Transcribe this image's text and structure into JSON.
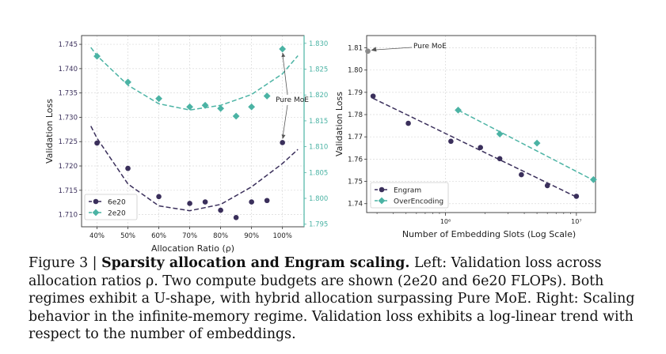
{
  "figure": {
    "caption_lead": "Figure 3 | ",
    "caption_bold": "Sparsity allocation and Engram scaling.",
    "caption_rest": " Left: Validation loss across allocation ratios ρ. Two compute budgets are shown (2e20 and 6e20 FLOPs). Both regimes exhibit a U-shape, with hybrid allocation surpassing Pure MoE. Right: Scaling behavior in the infinite-memory regime. Validation loss exhibits a log-linear trend with respect to the number of embeddings."
  },
  "colors": {
    "dark": "#3a2f5b",
    "teal": "#4bb3a4",
    "grid": "#d9d9d9",
    "gray": "#8a8a8a"
  },
  "chart_data": [
    {
      "type": "scatter",
      "xlabel": "Allocation Ratio (ρ)",
      "ylabel": "Validation Loss",
      "x_ticks": [
        "40%",
        "50%",
        "60%",
        "70%",
        "80%",
        "90%",
        "100%"
      ],
      "x_tick_values": [
        40,
        50,
        60,
        70,
        80,
        90,
        100
      ],
      "xlim": [
        35,
        107
      ],
      "y_left_ticks": [
        "1.710",
        "1.715",
        "1.720",
        "1.725",
        "1.730",
        "1.735",
        "1.740",
        "1.745"
      ],
      "y_left_tick_values": [
        1.71,
        1.715,
        1.72,
        1.725,
        1.73,
        1.735,
        1.74,
        1.745
      ],
      "ylim_left": [
        1.7075,
        1.7468
      ],
      "y_right_ticks": [
        "1.795",
        "1.800",
        "1.805",
        "1.810",
        "1.815",
        "1.820",
        "1.825",
        "1.830"
      ],
      "y_right_tick_values": [
        1.795,
        1.8,
        1.805,
        1.81,
        1.815,
        1.82,
        1.825,
        1.83
      ],
      "ylim_right": [
        1.7945,
        1.8315
      ],
      "grid": true,
      "legend_position": "lower-left",
      "annotation": "Pure MoE",
      "series": [
        {
          "name": "6e20",
          "axis": "left",
          "marker": "circle",
          "color": "#3a2f5b",
          "x": [
            40,
            50,
            60,
            70,
            75,
            80,
            85,
            90,
            95,
            100
          ],
          "y": [
            1.7247,
            1.7195,
            1.7137,
            1.7123,
            1.7126,
            1.7109,
            1.7094,
            1.7126,
            1.7129,
            1.7248
          ],
          "fit_x": [
            38,
            40,
            50,
            60,
            70,
            80,
            90,
            100,
            105
          ],
          "fit_y": [
            1.7282,
            1.7257,
            1.7163,
            1.7118,
            1.7108,
            1.7121,
            1.7157,
            1.7205,
            1.7234
          ]
        },
        {
          "name": "2e20",
          "axis": "right",
          "marker": "diamond",
          "color": "#4bb3a4",
          "x": [
            40,
            50,
            60,
            70,
            75,
            80,
            85,
            90,
            95,
            100
          ],
          "y": [
            1.8275,
            1.8225,
            1.8193,
            1.8177,
            1.818,
            1.8174,
            1.8159,
            1.8177,
            1.8198,
            1.8289
          ],
          "fit_x": [
            38,
            40,
            50,
            60,
            70,
            80,
            90,
            100,
            105
          ],
          "fit_y": [
            1.8292,
            1.8276,
            1.8219,
            1.8183,
            1.8171,
            1.818,
            1.8201,
            1.8241,
            1.8276
          ]
        }
      ]
    },
    {
      "type": "scatter",
      "xlabel": "Number of Embedding Slots (Log Scale)",
      "ylabel": "Validation Loss",
      "x_scale": "log",
      "x_ticks": [
        "10⁶",
        "10⁷"
      ],
      "x_tick_values": [
        1000000,
        10000000
      ],
      "xlim": [
        250000,
        14000000
      ],
      "y_ticks": [
        "1.74",
        "1.75",
        "1.76",
        "1.77",
        "1.78",
        "1.79",
        "1.80",
        "1.81"
      ],
      "y_tick_values": [
        1.74,
        1.75,
        1.76,
        1.77,
        1.78,
        1.79,
        1.8,
        1.81
      ],
      "ylim": [
        1.736,
        1.8155
      ],
      "grid": true,
      "legend_position": "lower-left",
      "annotation": "Pure MoE",
      "pure_moe_point": {
        "x": 250000,
        "y": 1.8085
      },
      "series": [
        {
          "name": "Engram",
          "marker": "circle",
          "color": "#3a2f5b",
          "x": [
            280000,
            520000,
            1100000,
            1850000,
            2600000,
            3800000,
            6000000,
            10000000
          ],
          "y": [
            1.7883,
            1.7761,
            1.768,
            1.7652,
            1.7602,
            1.753,
            1.7481,
            1.7433
          ],
          "fit_x": [
            280000,
            10000000
          ],
          "fit_y": [
            1.7873,
            1.743
          ]
        },
        {
          "name": "OverEncoding",
          "marker": "diamond",
          "color": "#4bb3a4",
          "x": [
            1250000,
            2600000,
            5000000,
            13500000
          ],
          "y": [
            1.782,
            1.7713,
            1.7672,
            1.7508
          ],
          "fit_x": [
            1250000,
            13500000
          ],
          "fit_y": [
            1.782,
            1.7505
          ]
        }
      ]
    }
  ]
}
